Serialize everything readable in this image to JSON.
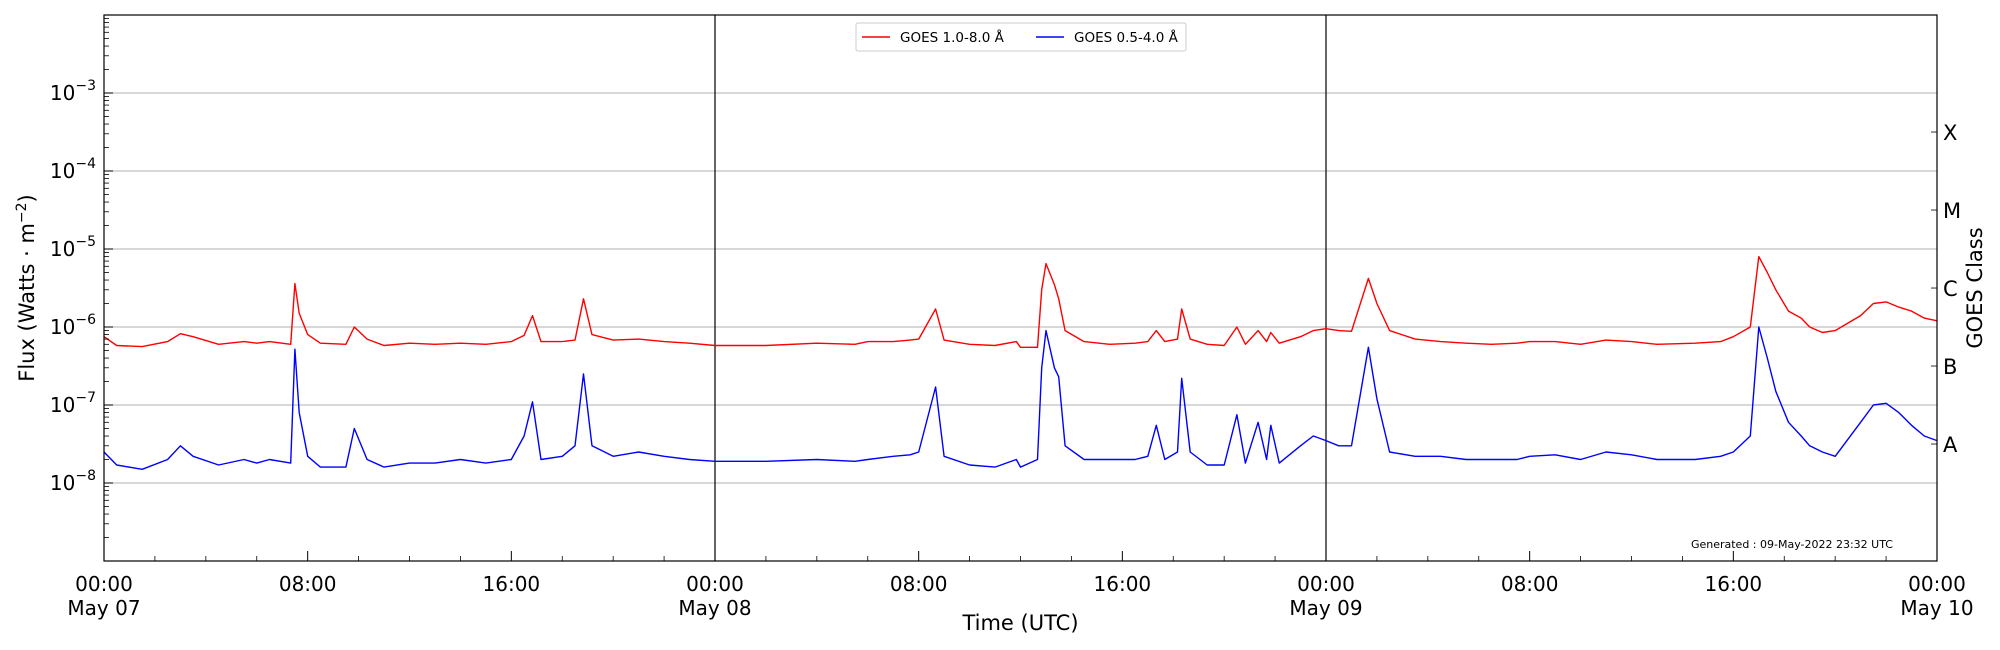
{
  "chart_data": {
    "type": "line",
    "title": "",
    "xlabel": "Time (UTC)",
    "ylabel_main": "Flux (Watts · m",
    "ylabel_exp": "−2",
    "ylabel_close": ")",
    "ylabel_right": "GOES Class",
    "y_scale": "log",
    "ylim": [
      1e-09,
      0.01
    ],
    "xlim": [
      "2022-05-07 00:00",
      "2022-05-10 00:00"
    ],
    "grid": "horizontal",
    "legend_position": "top-center",
    "x_ticks": [
      {
        "time": "2022-05-07 00:00",
        "top": "00:00",
        "bottom": "May 07"
      },
      {
        "time": "2022-05-07 08:00",
        "top": "08:00",
        "bottom": ""
      },
      {
        "time": "2022-05-07 16:00",
        "top": "16:00",
        "bottom": ""
      },
      {
        "time": "2022-05-08 00:00",
        "top": "00:00",
        "bottom": "May 08"
      },
      {
        "time": "2022-05-08 08:00",
        "top": "08:00",
        "bottom": ""
      },
      {
        "time": "2022-05-08 16:00",
        "top": "16:00",
        "bottom": ""
      },
      {
        "time": "2022-05-09 00:00",
        "top": "00:00",
        "bottom": "May 09"
      },
      {
        "time": "2022-05-09 08:00",
        "top": "08:00",
        "bottom": ""
      },
      {
        "time": "2022-05-09 16:00",
        "top": "16:00",
        "bottom": ""
      },
      {
        "time": "2022-05-10 00:00",
        "top": "00:00",
        "bottom": "May 10"
      }
    ],
    "y_ticks": [
      {
        "value": 1e-08,
        "base": "10",
        "exp": "−8"
      },
      {
        "value": 1e-07,
        "base": "10",
        "exp": "−7"
      },
      {
        "value": 1e-06,
        "base": "10",
        "exp": "−6"
      },
      {
        "value": 1e-05,
        "base": "10",
        "exp": "−5"
      },
      {
        "value": 0.0001,
        "base": "10",
        "exp": "−4"
      },
      {
        "value": 0.001,
        "base": "10",
        "exp": "−3"
      }
    ],
    "goes_classes": [
      {
        "label": "A",
        "value": 3.16e-08
      },
      {
        "label": "B",
        "value": 3.16e-07
      },
      {
        "label": "C",
        "value": 3.16e-06
      },
      {
        "label": "M",
        "value": 3.16e-05
      },
      {
        "label": "X",
        "value": 0.000316
      }
    ],
    "day_lines": [
      "2022-05-08 00:00",
      "2022-05-09 00:00"
    ],
    "series": [
      {
        "name": "GOES 1.0-8.0 Å",
        "color": "#ff0000",
        "points": [
          [
            "2022-05-07 00:00",
            7.5e-07
          ],
          [
            "2022-05-07 00:30",
            5.8e-07
          ],
          [
            "2022-05-07 01:30",
            5.6e-07
          ],
          [
            "2022-05-07 02:30",
            6.5e-07
          ],
          [
            "2022-05-07 03:00",
            8.2e-07
          ],
          [
            "2022-05-07 03:30",
            7.5e-07
          ],
          [
            "2022-05-07 04:30",
            6e-07
          ],
          [
            "2022-05-07 05:30",
            6.5e-07
          ],
          [
            "2022-05-07 06:00",
            6.2e-07
          ],
          [
            "2022-05-07 06:30",
            6.5e-07
          ],
          [
            "2022-05-07 07:20",
            6e-07
          ],
          [
            "2022-05-07 07:30",
            3.6e-06
          ],
          [
            "2022-05-07 07:40",
            1.5e-06
          ],
          [
            "2022-05-07 08:00",
            8e-07
          ],
          [
            "2022-05-07 08:30",
            6.2e-07
          ],
          [
            "2022-05-07 09:30",
            6e-07
          ],
          [
            "2022-05-07 09:50",
            1e-06
          ],
          [
            "2022-05-07 10:20",
            7e-07
          ],
          [
            "2022-05-07 11:00",
            5.8e-07
          ],
          [
            "2022-05-07 12:00",
            6.2e-07
          ],
          [
            "2022-05-07 13:00",
            6e-07
          ],
          [
            "2022-05-07 14:00",
            6.2e-07
          ],
          [
            "2022-05-07 15:00",
            6e-07
          ],
          [
            "2022-05-07 16:00",
            6.5e-07
          ],
          [
            "2022-05-07 16:30",
            7.8e-07
          ],
          [
            "2022-05-07 16:50",
            1.4e-06
          ],
          [
            "2022-05-07 17:10",
            6.5e-07
          ],
          [
            "2022-05-07 18:00",
            6.5e-07
          ],
          [
            "2022-05-07 18:30",
            6.8e-07
          ],
          [
            "2022-05-07 18:50",
            2.3e-06
          ],
          [
            "2022-05-07 19:10",
            8e-07
          ],
          [
            "2022-05-07 20:00",
            6.8e-07
          ],
          [
            "2022-05-07 21:00",
            7e-07
          ],
          [
            "2022-05-07 22:00",
            6.5e-07
          ],
          [
            "2022-05-07 23:00",
            6.2e-07
          ],
          [
            "2022-05-08 00:00",
            5.8e-07
          ],
          [
            "2022-05-08 02:00",
            5.8e-07
          ],
          [
            "2022-05-08 04:00",
            6.2e-07
          ],
          [
            "2022-05-08 05:30",
            6e-07
          ],
          [
            "2022-05-08 06:00",
            6.5e-07
          ],
          [
            "2022-05-08 07:00",
            6.5e-07
          ],
          [
            "2022-05-08 07:40",
            6.8e-07
          ],
          [
            "2022-05-08 08:00",
            7e-07
          ],
          [
            "2022-05-08 08:40",
            1.7e-06
          ],
          [
            "2022-05-08 09:00",
            6.8e-07
          ],
          [
            "2022-05-08 10:00",
            6e-07
          ],
          [
            "2022-05-08 11:00",
            5.8e-07
          ],
          [
            "2022-05-08 11:50",
            6.5e-07
          ],
          [
            "2022-05-08 12:00",
            5.5e-07
          ],
          [
            "2022-05-08 12:40",
            5.5e-07
          ],
          [
            "2022-05-08 12:50",
            3e-06
          ],
          [
            "2022-05-08 13:00",
            6.5e-06
          ],
          [
            "2022-05-08 13:20",
            3.5e-06
          ],
          [
            "2022-05-08 13:30",
            2.3e-06
          ],
          [
            "2022-05-08 13:45",
            9e-07
          ],
          [
            "2022-05-08 14:30",
            6.5e-07
          ],
          [
            "2022-05-08 15:30",
            6e-07
          ],
          [
            "2022-05-08 16:30",
            6.2e-07
          ],
          [
            "2022-05-08 17:00",
            6.5e-07
          ],
          [
            "2022-05-08 17:20",
            9e-07
          ],
          [
            "2022-05-08 17:40",
            6.5e-07
          ],
          [
            "2022-05-08 18:10",
            7e-07
          ],
          [
            "2022-05-08 18:20",
            1.7e-06
          ],
          [
            "2022-05-08 18:40",
            7e-07
          ],
          [
            "2022-05-08 19:20",
            6e-07
          ],
          [
            "2022-05-08 20:00",
            5.8e-07
          ],
          [
            "2022-05-08 20:30",
            1e-06
          ],
          [
            "2022-05-08 20:50",
            6e-07
          ],
          [
            "2022-05-08 21:20",
            9e-07
          ],
          [
            "2022-05-08 21:40",
            6.5e-07
          ],
          [
            "2022-05-08 21:50",
            8.5e-07
          ],
          [
            "2022-05-08 22:10",
            6.2e-07
          ],
          [
            "2022-05-08 23:00",
            7.5e-07
          ],
          [
            "2022-05-08 23:30",
            9e-07
          ],
          [
            "2022-05-09 00:00",
            9.5e-07
          ],
          [
            "2022-05-09 00:30",
            9e-07
          ],
          [
            "2022-05-09 01:00",
            8.8e-07
          ],
          [
            "2022-05-09 01:40",
            4.2e-06
          ],
          [
            "2022-05-09 02:00",
            2e-06
          ],
          [
            "2022-05-09 02:30",
            9e-07
          ],
          [
            "2022-05-09 03:30",
            7e-07
          ],
          [
            "2022-05-09 04:30",
            6.5e-07
          ],
          [
            "2022-05-09 05:30",
            6.2e-07
          ],
          [
            "2022-05-09 06:30",
            6e-07
          ],
          [
            "2022-05-09 07:30",
            6.2e-07
          ],
          [
            "2022-05-09 08:00",
            6.5e-07
          ],
          [
            "2022-05-09 09:00",
            6.5e-07
          ],
          [
            "2022-05-09 10:00",
            6e-07
          ],
          [
            "2022-05-09 11:00",
            6.8e-07
          ],
          [
            "2022-05-09 12:00",
            6.5e-07
          ],
          [
            "2022-05-09 13:00",
            6e-07
          ],
          [
            "2022-05-09 14:30",
            6.2e-07
          ],
          [
            "2022-05-09 15:30",
            6.5e-07
          ],
          [
            "2022-05-09 16:00",
            7.5e-07
          ],
          [
            "2022-05-09 16:40",
            1e-06
          ],
          [
            "2022-05-09 17:00",
            8e-06
          ],
          [
            "2022-05-09 17:20",
            5e-06
          ],
          [
            "2022-05-09 17:40",
            3e-06
          ],
          [
            "2022-05-09 18:10",
            1.6e-06
          ],
          [
            "2022-05-09 18:40",
            1.3e-06
          ],
          [
            "2022-05-09 19:00",
            1e-06
          ],
          [
            "2022-05-09 19:30",
            8.5e-07
          ],
          [
            "2022-05-09 20:00",
            9e-07
          ],
          [
            "2022-05-09 21:00",
            1.4e-06
          ],
          [
            "2022-05-09 21:30",
            2e-06
          ],
          [
            "2022-05-09 22:00",
            2.1e-06
          ],
          [
            "2022-05-09 22:30",
            1.8e-06
          ],
          [
            "2022-05-09 23:00",
            1.6e-06
          ],
          [
            "2022-05-09 23:30",
            1.3e-06
          ],
          [
            "2022-05-10 00:00",
            1.2e-06
          ]
        ]
      },
      {
        "name": "GOES 0.5-4.0 Å",
        "color": "#0000ff",
        "points": [
          [
            "2022-05-07 00:00",
            2.5e-08
          ],
          [
            "2022-05-07 00:30",
            1.7e-08
          ],
          [
            "2022-05-07 01:30",
            1.5e-08
          ],
          [
            "2022-05-07 02:30",
            2e-08
          ],
          [
            "2022-05-07 03:00",
            3e-08
          ],
          [
            "2022-05-07 03:30",
            2.2e-08
          ],
          [
            "2022-05-07 04:30",
            1.7e-08
          ],
          [
            "2022-05-07 05:30",
            2e-08
          ],
          [
            "2022-05-07 06:00",
            1.8e-08
          ],
          [
            "2022-05-07 06:30",
            2e-08
          ],
          [
            "2022-05-07 07:20",
            1.8e-08
          ],
          [
            "2022-05-07 07:30",
            5.2e-07
          ],
          [
            "2022-05-07 07:40",
            8e-08
          ],
          [
            "2022-05-07 08:00",
            2.2e-08
          ],
          [
            "2022-05-07 08:30",
            1.6e-08
          ],
          [
            "2022-05-07 09:30",
            1.6e-08
          ],
          [
            "2022-05-07 09:50",
            5e-08
          ],
          [
            "2022-05-07 10:20",
            2e-08
          ],
          [
            "2022-05-07 11:00",
            1.6e-08
          ],
          [
            "2022-05-07 12:00",
            1.8e-08
          ],
          [
            "2022-05-07 13:00",
            1.8e-08
          ],
          [
            "2022-05-07 14:00",
            2e-08
          ],
          [
            "2022-05-07 15:00",
            1.8e-08
          ],
          [
            "2022-05-07 16:00",
            2e-08
          ],
          [
            "2022-05-07 16:30",
            4e-08
          ],
          [
            "2022-05-07 16:50",
            1.1e-07
          ],
          [
            "2022-05-07 17:10",
            2e-08
          ],
          [
            "2022-05-07 18:00",
            2.2e-08
          ],
          [
            "2022-05-07 18:30",
            3e-08
          ],
          [
            "2022-05-07 18:50",
            2.5e-07
          ],
          [
            "2022-05-07 19:10",
            3e-08
          ],
          [
            "2022-05-07 20:00",
            2.2e-08
          ],
          [
            "2022-05-07 21:00",
            2.5e-08
          ],
          [
            "2022-05-07 22:00",
            2.2e-08
          ],
          [
            "2022-05-07 23:00",
            2e-08
          ],
          [
            "2022-05-08 00:00",
            1.9e-08
          ],
          [
            "2022-05-08 02:00",
            1.9e-08
          ],
          [
            "2022-05-08 04:00",
            2e-08
          ],
          [
            "2022-05-08 05:30",
            1.9e-08
          ],
          [
            "2022-05-08 06:00",
            2e-08
          ],
          [
            "2022-05-08 07:00",
            2.2e-08
          ],
          [
            "2022-05-08 07:40",
            2.3e-08
          ],
          [
            "2022-05-08 08:00",
            2.5e-08
          ],
          [
            "2022-05-08 08:40",
            1.7e-07
          ],
          [
            "2022-05-08 09:00",
            2.2e-08
          ],
          [
            "2022-05-08 10:00",
            1.7e-08
          ],
          [
            "2022-05-08 11:00",
            1.6e-08
          ],
          [
            "2022-05-08 11:50",
            2e-08
          ],
          [
            "2022-05-08 12:00",
            1.6e-08
          ],
          [
            "2022-05-08 12:40",
            2e-08
          ],
          [
            "2022-05-08 12:50",
            3e-07
          ],
          [
            "2022-05-08 13:00",
            9e-07
          ],
          [
            "2022-05-08 13:20",
            3e-07
          ],
          [
            "2022-05-08 13:30",
            2.3e-07
          ],
          [
            "2022-05-08 13:45",
            3e-08
          ],
          [
            "2022-05-08 14:30",
            2e-08
          ],
          [
            "2022-05-08 15:30",
            2e-08
          ],
          [
            "2022-05-08 16:30",
            2e-08
          ],
          [
            "2022-05-08 17:00",
            2.2e-08
          ],
          [
            "2022-05-08 17:20",
            5.5e-08
          ],
          [
            "2022-05-08 17:40",
            2e-08
          ],
          [
            "2022-05-08 18:10",
            2.5e-08
          ],
          [
            "2022-05-08 18:20",
            2.2e-07
          ],
          [
            "2022-05-08 18:40",
            2.5e-08
          ],
          [
            "2022-05-08 19:20",
            1.7e-08
          ],
          [
            "2022-05-08 20:00",
            1.7e-08
          ],
          [
            "2022-05-08 20:30",
            7.5e-08
          ],
          [
            "2022-05-08 20:50",
            1.8e-08
          ],
          [
            "2022-05-08 21:20",
            6e-08
          ],
          [
            "2022-05-08 21:40",
            2e-08
          ],
          [
            "2022-05-08 21:50",
            5.5e-08
          ],
          [
            "2022-05-08 22:10",
            1.8e-08
          ],
          [
            "2022-05-08 23:00",
            3e-08
          ],
          [
            "2022-05-08 23:30",
            4e-08
          ],
          [
            "2022-05-09 00:00",
            3.5e-08
          ],
          [
            "2022-05-09 00:30",
            3e-08
          ],
          [
            "2022-05-09 01:00",
            3e-08
          ],
          [
            "2022-05-09 01:40",
            5.5e-07
          ],
          [
            "2022-05-09 02:00",
            1.2e-07
          ],
          [
            "2022-05-09 02:30",
            2.5e-08
          ],
          [
            "2022-05-09 03:30",
            2.2e-08
          ],
          [
            "2022-05-09 04:30",
            2.2e-08
          ],
          [
            "2022-05-09 05:30",
            2e-08
          ],
          [
            "2022-05-09 06:30",
            2e-08
          ],
          [
            "2022-05-09 07:30",
            2e-08
          ],
          [
            "2022-05-09 08:00",
            2.2e-08
          ],
          [
            "2022-05-09 09:00",
            2.3e-08
          ],
          [
            "2022-05-09 10:00",
            2e-08
          ],
          [
            "2022-05-09 11:00",
            2.5e-08
          ],
          [
            "2022-05-09 12:00",
            2.3e-08
          ],
          [
            "2022-05-09 13:00",
            2e-08
          ],
          [
            "2022-05-09 14:30",
            2e-08
          ],
          [
            "2022-05-09 15:30",
            2.2e-08
          ],
          [
            "2022-05-09 16:00",
            2.5e-08
          ],
          [
            "2022-05-09 16:40",
            4e-08
          ],
          [
            "2022-05-09 17:00",
            1e-06
          ],
          [
            "2022-05-09 17:20",
            4e-07
          ],
          [
            "2022-05-09 17:40",
            1.5e-07
          ],
          [
            "2022-05-09 18:10",
            6e-08
          ],
          [
            "2022-05-09 18:40",
            4e-08
          ],
          [
            "2022-05-09 19:00",
            3e-08
          ],
          [
            "2022-05-09 19:30",
            2.5e-08
          ],
          [
            "2022-05-09 20:00",
            2.2e-08
          ],
          [
            "2022-05-09 21:00",
            6e-08
          ],
          [
            "2022-05-09 21:30",
            1e-07
          ],
          [
            "2022-05-09 22:00",
            1.05e-07
          ],
          [
            "2022-05-09 22:30",
            8e-08
          ],
          [
            "2022-05-09 23:00",
            5.5e-08
          ],
          [
            "2022-05-09 23:30",
            4e-08
          ],
          [
            "2022-05-10 00:00",
            3.5e-08
          ]
        ]
      }
    ],
    "annotation": "Generated : 09-May-2022 23:32 UTC"
  }
}
